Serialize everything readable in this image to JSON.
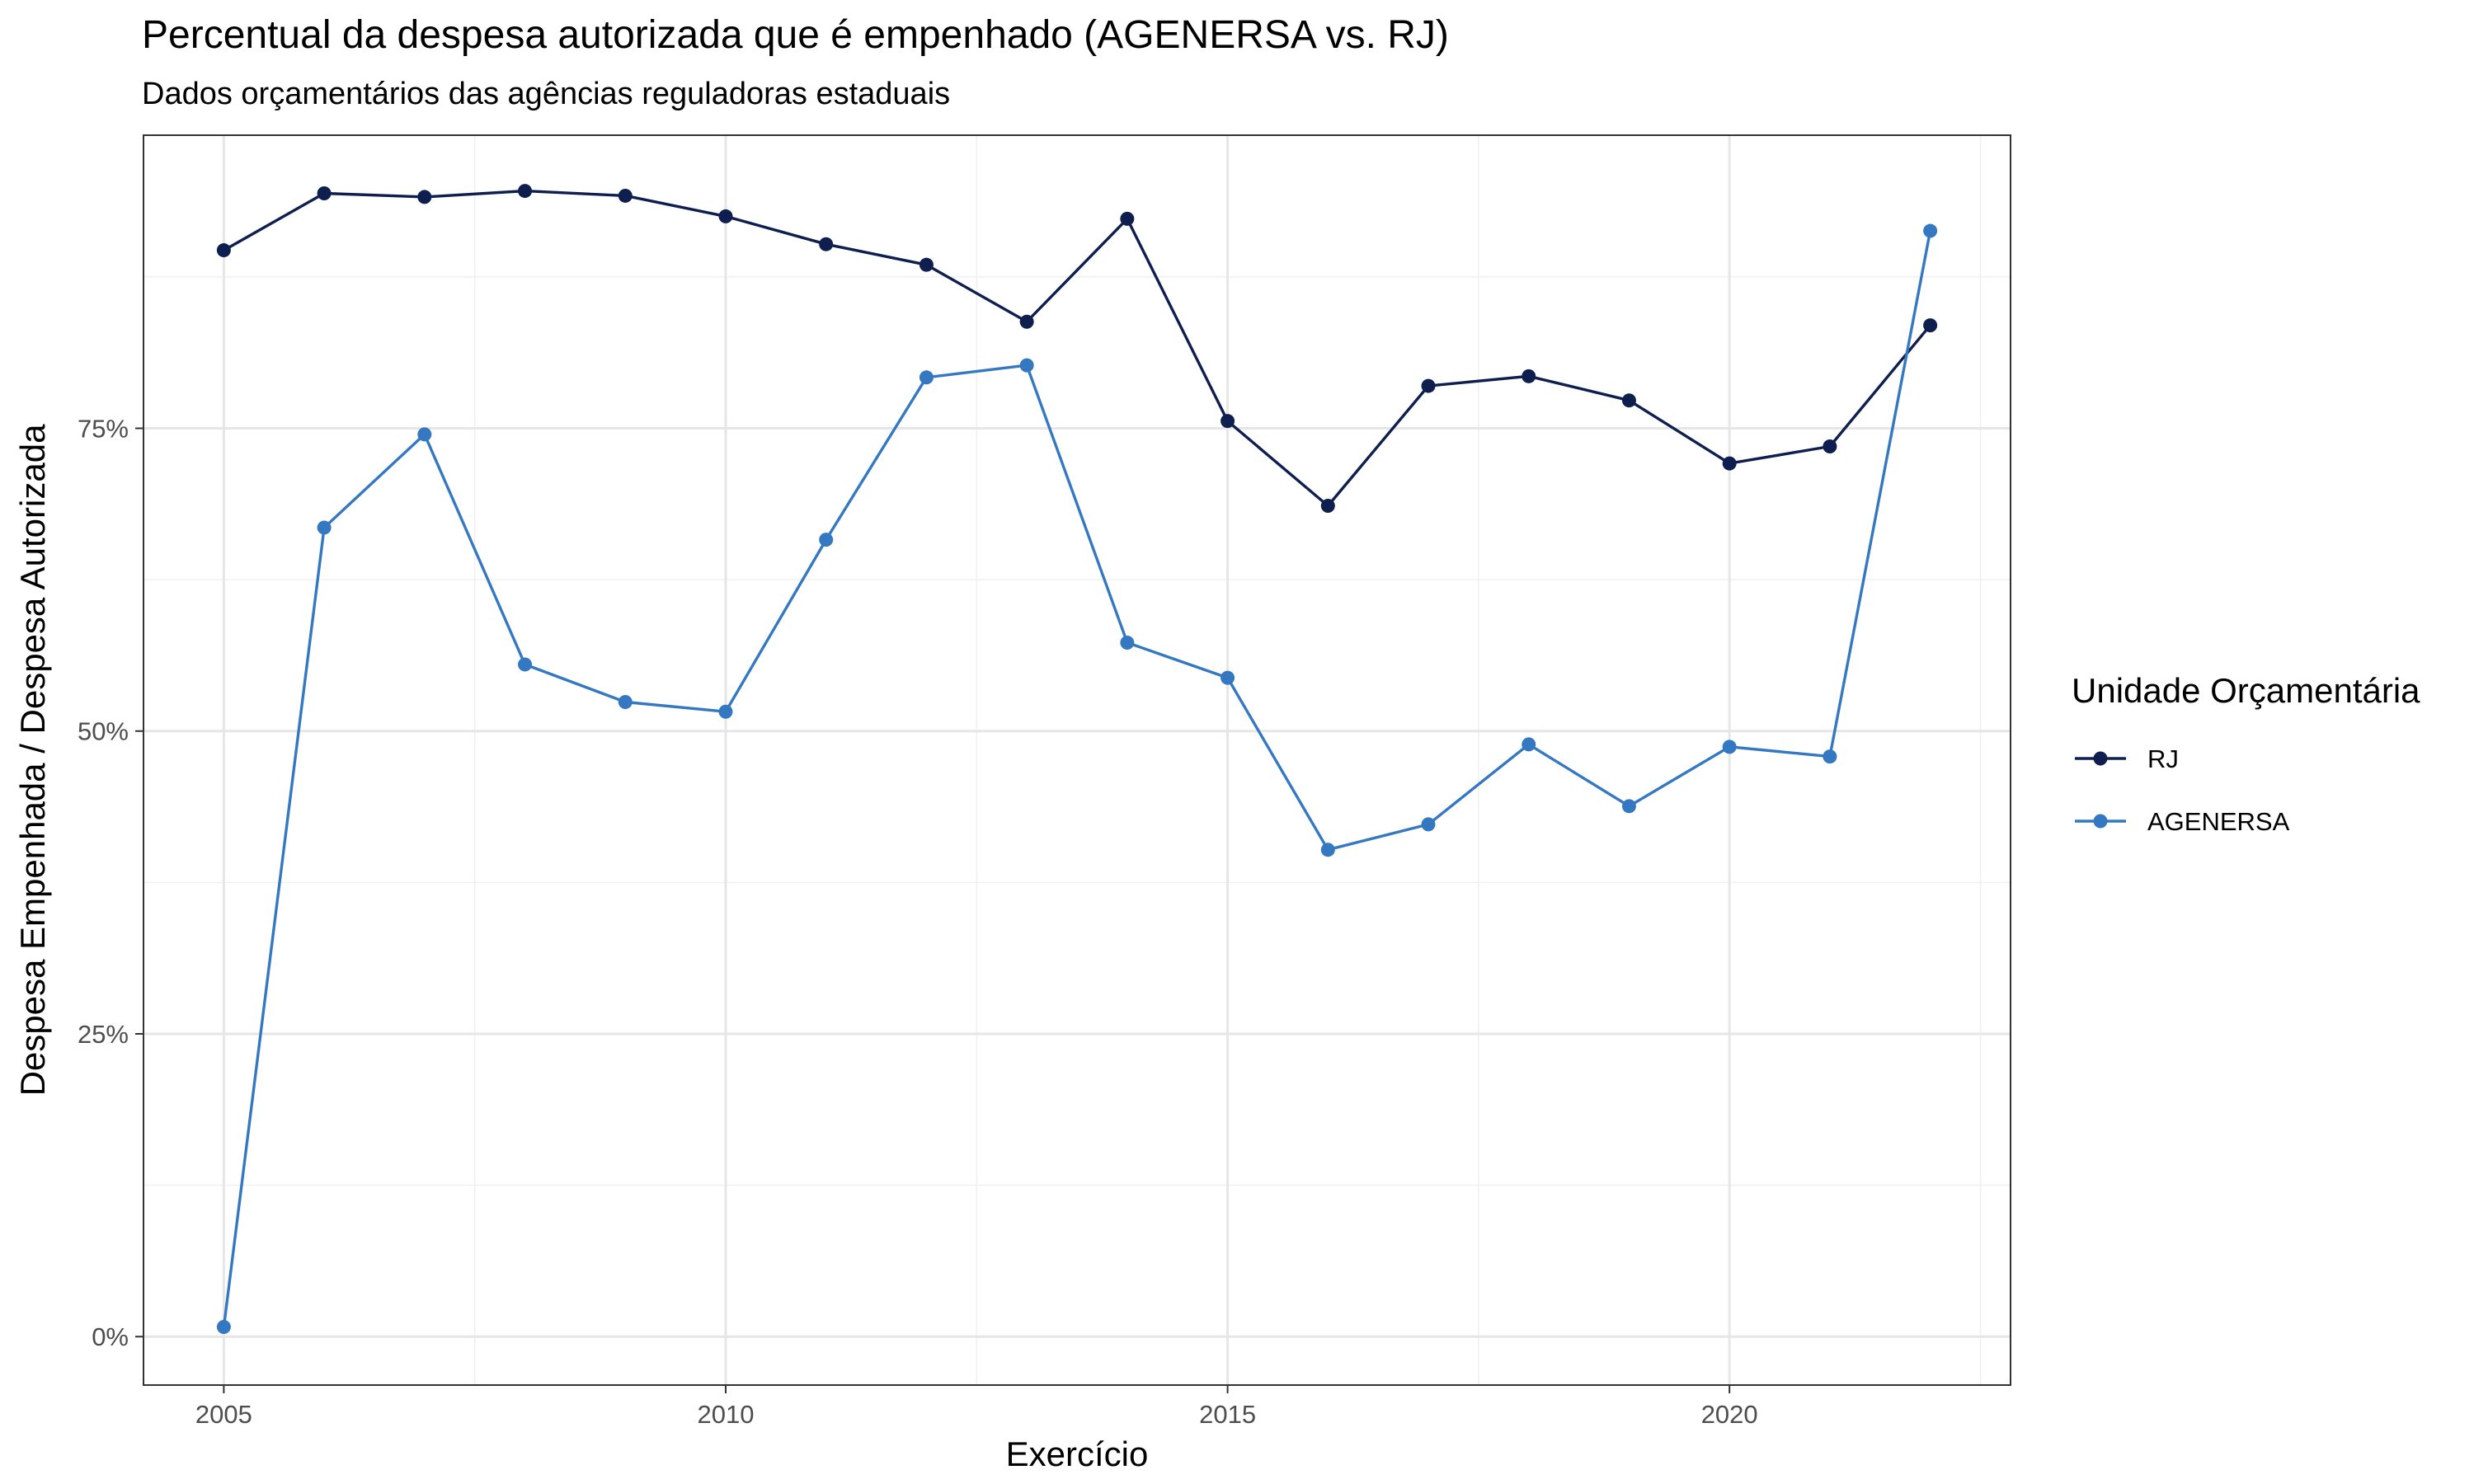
{
  "chart_data": {
    "type": "line",
    "title": "Percentual da despesa autorizada que é empenhado (AGENERSA vs. RJ)",
    "subtitle": "Dados orçamentários das agências reguladoras estaduais",
    "xlabel": "Exercício",
    "ylabel": "Despesa Empenhada / Despesa Autorizada",
    "x": [
      2005,
      2006,
      2007,
      2008,
      2009,
      2010,
      2011,
      2012,
      2013,
      2014,
      2015,
      2016,
      2017,
      2018,
      2019,
      2020,
      2021,
      2022
    ],
    "xlim": [
      2004.2,
      2022.8
    ],
    "ylim": [
      -0.04,
      0.992
    ],
    "x_ticks": [
      2005,
      2010,
      2015,
      2020
    ],
    "x_tick_labels": [
      "2005",
      "2010",
      "2015",
      "2020"
    ],
    "y_ticks": [
      0,
      0.25,
      0.5,
      0.75
    ],
    "y_tick_labels": [
      "0%",
      "25%",
      "50%",
      "75%"
    ],
    "grid": true,
    "legend": {
      "title": "Unidade Orçamentária",
      "position": "right"
    },
    "series": [
      {
        "name": "RJ",
        "color": "#0e1f4f",
        "values": [
          0.897,
          0.944,
          0.941,
          0.946,
          0.942,
          0.925,
          0.902,
          0.885,
          0.838,
          0.923,
          0.756,
          0.686,
          0.785,
          0.793,
          0.773,
          0.721,
          0.735,
          0.835
        ]
      },
      {
        "name": "AGENERSA",
        "color": "#3578c2",
        "values": [
          0.008,
          0.668,
          0.745,
          0.555,
          0.524,
          0.516,
          0.658,
          0.792,
          0.802,
          0.573,
          0.544,
          0.402,
          0.423,
          0.489,
          0.438,
          0.487,
          0.479,
          0.913
        ]
      }
    ]
  }
}
